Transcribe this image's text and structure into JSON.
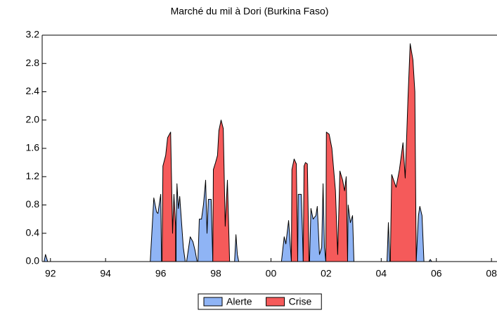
{
  "chart_data": {
    "type": "area",
    "title": "Marché du mil à Dori (Burkina Faso)",
    "xlim": [
      1991.7,
      2008.2
    ],
    "xticks": [
      {
        "value": 1992,
        "label": "92"
      },
      {
        "value": 1994,
        "label": "94"
      },
      {
        "value": 1996,
        "label": "96"
      },
      {
        "value": 1998,
        "label": "98"
      },
      {
        "value": 2000,
        "label": "00"
      },
      {
        "value": 2002,
        "label": "02"
      },
      {
        "value": 2004,
        "label": "04"
      },
      {
        "value": 2006,
        "label": "06"
      },
      {
        "value": 2008,
        "label": "08"
      }
    ],
    "ylim": [
      0,
      3.2
    ],
    "yticks": [
      {
        "value": 0,
        "label": "0.0"
      },
      0.4,
      0.8,
      1.2,
      1.6,
      {
        "value": 2,
        "label": "2.0"
      },
      2.4,
      2.8,
      3.2
    ],
    "legend": "bottom",
    "series": [
      {
        "name": "Alerte",
        "color": "#8fb4f5",
        "x": [
          1991.77,
          1991.82,
          1991.9,
          null,
          1995.62,
          1995.75,
          1995.85,
          1995.9,
          1996.0,
          1996.03,
          null,
          1996.56,
          1996.59,
          1996.64,
          1996.69,
          1996.82,
          1996.89,
          null,
          1996.94,
          1997.07,
          1997.17,
          1997.25,
          1997.32,
          null,
          1997.35,
          1997.4,
          1997.48,
          1997.55,
          1997.63,
          1997.68,
          1997.73,
          1997.83,
          1997.89,
          null,
          1998.68,
          1998.73,
          1998.78,
          1998.83,
          null,
          2000.38,
          2000.48,
          2000.54,
          2000.64,
          2000.69,
          2000.74,
          null,
          2000.97,
          2000.99,
          2001.1,
          2001.15,
          2001.17,
          null,
          2001.4,
          2001.45,
          2001.53,
          2001.63,
          2001.68,
          2001.76,
          2001.84,
          2001.89,
          2001.94,
          2001.99,
          null,
          2002.78,
          2002.8,
          2002.88,
          2002.96,
          2003.01,
          null,
          2004.21,
          2004.26,
          2004.31,
          null,
          2005.27,
          2005.35,
          2005.4,
          2005.48,
          2005.55,
          null,
          2005.73,
          2005.78,
          2005.83
        ],
        "values": [
          0,
          0.1,
          0,
          null,
          0,
          0.9,
          0.7,
          0.68,
          0.95,
          0,
          null,
          0.5,
          1.1,
          0.75,
          0.92,
          0.2,
          0,
          null,
          0,
          0.35,
          0.28,
          0.15,
          0,
          null,
          0,
          0.6,
          0.6,
          0.8,
          1.15,
          0.4,
          0.88,
          0.88,
          0,
          null,
          0,
          0.38,
          0.1,
          0,
          null,
          0,
          0.35,
          0.25,
          0.58,
          0.3,
          0,
          null,
          0,
          0.95,
          0.95,
          0.3,
          0,
          null,
          0,
          0.75,
          0.6,
          0.65,
          0.78,
          0.1,
          0.2,
          1.1,
          0.2,
          0,
          null,
          0,
          0.8,
          0.55,
          0.65,
          0,
          null,
          0,
          0.55,
          0,
          null,
          0,
          0.65,
          0.78,
          0.65,
          0,
          null,
          0,
          0.03,
          0
        ]
      },
      {
        "name": "Crise",
        "color": "#f55a5a",
        "x": [
          1996.05,
          1996.08,
          1996.18,
          1996.25,
          1996.36,
          1996.43,
          1996.48,
          1996.54,
          null,
          1997.89,
          1997.91,
          1997.99,
          1998.06,
          1998.11,
          1998.19,
          1998.27,
          1998.34,
          1998.42,
          1998.5,
          null,
          2000.74,
          2000.76,
          2000.84,
          2000.92,
          2000.97,
          null,
          2001.17,
          2001.2,
          2001.25,
          2001.32,
          2001.38,
          null,
          2001.99,
          2002.01,
          2002.11,
          2002.21,
          2002.34,
          2002.42,
          2002.5,
          2002.6,
          2002.67,
          2002.73,
          2002.78,
          null,
          2004.33,
          2004.38,
          2004.54,
          2004.66,
          2004.79,
          2004.87,
          2004.97,
          2005.05,
          2005.15,
          2005.22,
          2005.27
        ],
        "values": [
          0,
          1.35,
          1.5,
          1.75,
          1.83,
          0.4,
          0.95,
          0.5,
          null,
          0,
          1.3,
          1.4,
          1.5,
          1.85,
          2.0,
          1.88,
          0.5,
          1.15,
          0,
          null,
          0,
          1.3,
          1.45,
          1.38,
          0,
          null,
          0,
          1.35,
          1.4,
          1.38,
          0,
          null,
          0,
          1.83,
          1.8,
          1.6,
          1.0,
          0.1,
          1.28,
          1.15,
          1.0,
          1.2,
          0,
          null,
          0,
          1.23,
          1.05,
          1.3,
          1.68,
          1.18,
          2.3,
          3.08,
          2.85,
          2.4,
          0
        ]
      }
    ]
  }
}
